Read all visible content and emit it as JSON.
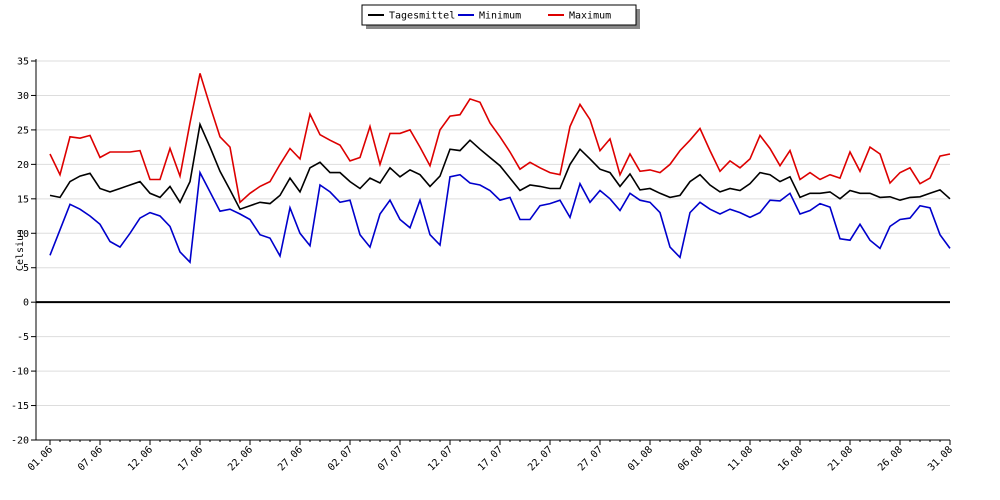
{
  "chart_data": {
    "type": "line",
    "ylabel": "Celsius",
    "categories": [
      "01.06",
      null,
      null,
      null,
      null,
      "07.06",
      null,
      null,
      null,
      null,
      "12.06",
      null,
      null,
      null,
      null,
      "17.06",
      null,
      null,
      null,
      null,
      "22.06",
      null,
      null,
      null,
      null,
      "27.06",
      null,
      null,
      null,
      null,
      "02.07",
      null,
      null,
      null,
      null,
      "07.07",
      null,
      null,
      null,
      null,
      "12.07",
      null,
      null,
      null,
      null,
      "17.07",
      null,
      null,
      null,
      null,
      "22.07",
      null,
      null,
      null,
      null,
      "27.07",
      null,
      null,
      null,
      null,
      "01.08",
      null,
      null,
      null,
      null,
      "06.08",
      null,
      null,
      null,
      null,
      "11.08",
      null,
      null,
      null,
      null,
      "16.08",
      null,
      null,
      null,
      null,
      "21.08",
      null,
      null,
      null,
      null,
      "26.08",
      null,
      null,
      null,
      null,
      "31.08"
    ],
    "series": [
      {
        "name": "Tagesmittel",
        "color": "#000000",
        "values": [
          15.5,
          15.2,
          17.5,
          18.3,
          18.7,
          16.5,
          16,
          16.5,
          17,
          17.5,
          15.8,
          15.2,
          16.8,
          14.5,
          17.5,
          25.8,
          22.5,
          19,
          16.3,
          13.5,
          14,
          14.5,
          14.3,
          15.5,
          18,
          16,
          19.5,
          20.3,
          18.8,
          18.8,
          17.5,
          16.5,
          18,
          17.3,
          19.5,
          18.2,
          19.2,
          18.5,
          16.8,
          18.3,
          22.2,
          22,
          23.5,
          22.2,
          21,
          19.8,
          18,
          16.2,
          17,
          16.8,
          16.5,
          16.5,
          20,
          22.2,
          20.8,
          19.3,
          18.8,
          16.8,
          18.6,
          16.3,
          16.5,
          15.8,
          15.2,
          15.5,
          17.5,
          18.5,
          17,
          16,
          16.5,
          16.2,
          17.2,
          18.8,
          18.5,
          17.5,
          18.2,
          15.2,
          15.8,
          15.8,
          16,
          15,
          16.2,
          15.8,
          15.8,
          15.2,
          15.3,
          14.8,
          15.2,
          15.3,
          15.8,
          16.3,
          15
        ]
      },
      {
        "name": "Minimum",
        "color": "#0000cc",
        "values": [
          6.8,
          10.5,
          14.2,
          13.5,
          12.5,
          11.3,
          8.8,
          8,
          10,
          12.2,
          13,
          12.5,
          11,
          7.3,
          5.8,
          18.8,
          16,
          13.2,
          13.5,
          12.8,
          12,
          9.8,
          9.3,
          6.7,
          13.7,
          10,
          8.2,
          17,
          16,
          14.5,
          14.8,
          9.8,
          8,
          12.8,
          14.8,
          12,
          10.8,
          14.8,
          9.8,
          8.3,
          18.2,
          18.5,
          17.3,
          17,
          16.2,
          14.8,
          15.2,
          12,
          12,
          14,
          14.3,
          14.8,
          12.3,
          17.2,
          14.5,
          16.2,
          15,
          13.3,
          15.8,
          14.8,
          14.5,
          13,
          8,
          6.5,
          13,
          14.5,
          13.5,
          12.8,
          13.5,
          13,
          12.3,
          13,
          14.8,
          14.7,
          15.8,
          12.8,
          13.3,
          14.3,
          13.8,
          9.2,
          9,
          11.3,
          9,
          7.8,
          11,
          12,
          12.2,
          14,
          13.7,
          9.8,
          7.8
        ]
      },
      {
        "name": "Maximum",
        "color": "#dd0000",
        "values": [
          21.5,
          18.5,
          24,
          23.8,
          24.2,
          21,
          21.8,
          21.8,
          21.8,
          22,
          17.8,
          17.8,
          22.3,
          18.3,
          26,
          33.2,
          28.5,
          24,
          22.5,
          14.5,
          15.8,
          16.8,
          17.5,
          20,
          22.3,
          20.8,
          27.3,
          24.3,
          23.5,
          22.8,
          20.5,
          21,
          25.5,
          20,
          24.5,
          24.5,
          25,
          22.5,
          19.8,
          25,
          27,
          27.2,
          29.5,
          29,
          26,
          24,
          21.8,
          19.3,
          20.3,
          19.5,
          18.8,
          18.5,
          25.5,
          28.7,
          26.5,
          22,
          23.7,
          18.5,
          21.5,
          19,
          19.2,
          18.8,
          20,
          22,
          23.5,
          25.2,
          22,
          19,
          20.5,
          19.5,
          20.8,
          24.2,
          22.3,
          19.8,
          22,
          17.8,
          18.8,
          17.8,
          18.5,
          18,
          21.8,
          19,
          22.5,
          21.5,
          17.3,
          18.8,
          19.5,
          17.2,
          18,
          21.2,
          21.5
        ]
      }
    ],
    "ylim": [
      -20,
      35
    ],
    "yticks": [
      -20,
      -15,
      -10,
      -5,
      0,
      5,
      10,
      15,
      20,
      25,
      30,
      35
    ],
    "grid": true
  }
}
